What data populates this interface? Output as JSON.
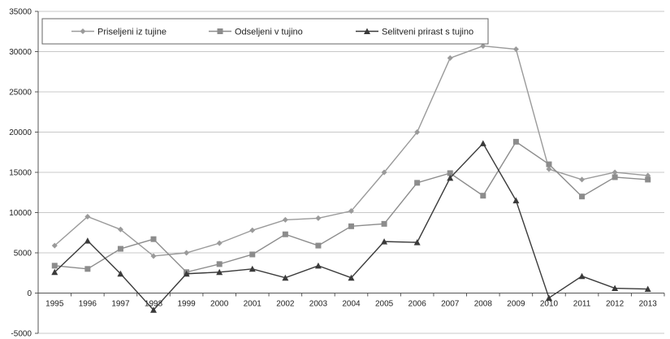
{
  "chart_data": {
    "type": "line",
    "title": "",
    "xlabel": "",
    "ylabel": "",
    "categories": [
      "1995",
      "1996",
      "1997",
      "1998",
      "1999",
      "2000",
      "2001",
      "2002",
      "2003",
      "2004",
      "2005",
      "2006",
      "2007",
      "2008",
      "2009",
      "2010",
      "2011",
      "2012",
      "2013"
    ],
    "ylim": [
      -5000,
      35000
    ],
    "yticks": [
      -5000,
      0,
      5000,
      10000,
      15000,
      20000,
      25000,
      30000,
      35000
    ],
    "grid": true,
    "legend_position": "top-left",
    "series": [
      {
        "name": "Priseljeni iz tujine",
        "marker": "diamond",
        "color": "#9a9a9a",
        "values": [
          5900,
          9500,
          7900,
          4600,
          5000,
          6200,
          7800,
          9100,
          9300,
          10200,
          15000,
          20000,
          29200,
          30700,
          30300,
          15400,
          14100,
          15000,
          14600
        ]
      },
      {
        "name": "Odseljeni v tujino",
        "marker": "square",
        "color": "#8c8c8c",
        "values": [
          3400,
          3000,
          5500,
          6700,
          2600,
          3600,
          4800,
          7300,
          5900,
          8300,
          8600,
          13700,
          14900,
          12100,
          18800,
          16000,
          12000,
          14400,
          14100
        ]
      },
      {
        "name": "Selitveni prirast s tujino",
        "marker": "triangle",
        "color": "#3a3a3a",
        "values": [
          2600,
          6500,
          2400,
          -2100,
          2400,
          2600,
          3000,
          1900,
          3400,
          1900,
          6400,
          6300,
          14300,
          18600,
          11500,
          -600,
          2100,
          600,
          500
        ]
      }
    ]
  }
}
